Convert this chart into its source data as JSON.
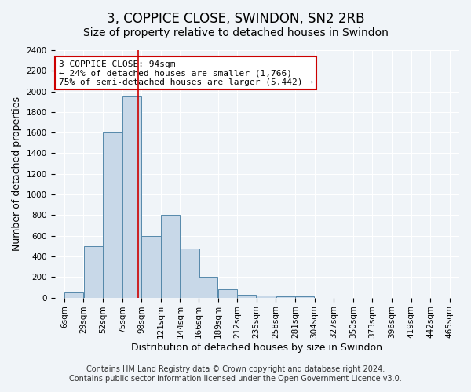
{
  "title": "3, COPPICE CLOSE, SWINDON, SN2 2RB",
  "subtitle": "Size of property relative to detached houses in Swindon",
  "xlabel": "Distribution of detached houses by size in Swindon",
  "ylabel": "Number of detached properties",
  "footer1": "Contains HM Land Registry data © Crown copyright and database right 2024.",
  "footer2": "Contains public sector information licensed under the Open Government Licence v3.0.",
  "annotation_line1": "3 COPPICE CLOSE: 94sqm",
  "annotation_line2": "← 24% of detached houses are smaller (1,766)",
  "annotation_line3": "75% of semi-detached houses are larger (5,442) →",
  "bar_color": "#c8d8e8",
  "bar_edge_color": "#5588aa",
  "red_line_x": 94,
  "annotation_box_color": "#ffffff",
  "annotation_box_edge": "#cc0000",
  "bins": [
    6,
    29,
    52,
    75,
    98,
    121,
    144,
    166,
    189,
    212,
    235,
    258,
    281,
    304,
    327,
    350,
    373,
    396,
    419,
    442,
    465
  ],
  "counts": [
    50,
    500,
    1600,
    1950,
    600,
    800,
    475,
    200,
    80,
    25,
    20,
    10,
    10,
    0,
    0,
    0,
    0,
    0,
    0,
    0
  ],
  "ylim": [
    0,
    2400
  ],
  "yticks": [
    0,
    200,
    400,
    600,
    800,
    1000,
    1200,
    1400,
    1600,
    1800,
    2000,
    2200,
    2400
  ],
  "background_color": "#f0f4f8",
  "title_fontsize": 12,
  "subtitle_fontsize": 10,
  "xlabel_fontsize": 9,
  "ylabel_fontsize": 9,
  "tick_fontsize": 7.5,
  "annotation_fontsize": 8,
  "footer_fontsize": 7
}
